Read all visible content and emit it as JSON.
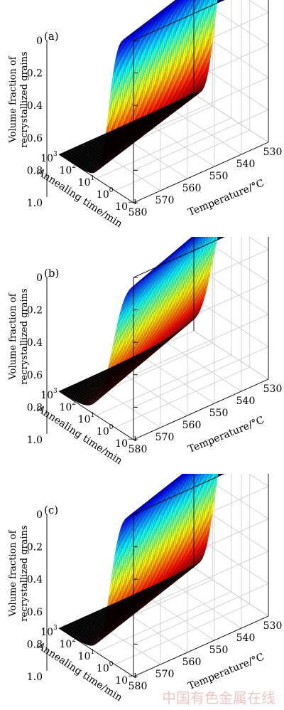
{
  "chart_data": [
    {
      "type": "surface",
      "panel_label": "(a)",
      "zlabel": [
        "Volume fraction of",
        "recrystallized grains"
      ],
      "xlabel": "Annealing time/min",
      "ylabel": "Temperature/°C",
      "x_ticks": [
        "10",
        "10",
        "10",
        "10",
        "10"
      ],
      "x_exponents": [
        "−1",
        "0",
        "1",
        "2",
        "3"
      ],
      "x_tick_values": [
        -1,
        0,
        1,
        2,
        3
      ],
      "x_scale": "log",
      "xlim": [
        0.1,
        1000
      ],
      "y_ticks": [
        "530",
        "540",
        "550",
        "560",
        "570",
        "580"
      ],
      "y_tick_values": [
        530,
        540,
        550,
        560,
        570,
        580
      ],
      "ylim": [
        530,
        580
      ],
      "z_ticks": [
        "0",
        "0.2",
        "0.4",
        "0.6",
        "0.8",
        "1.0"
      ],
      "z_tick_values": [
        0,
        0.2,
        0.4,
        0.6,
        0.8,
        1.0
      ],
      "zlim": [
        0,
        1
      ],
      "z_axis": "reversed",
      "grid": true,
      "colormap": [
        "#00007f",
        "#0000ff",
        "#0080ff",
        "#00ffff",
        "#80ff80",
        "#ffff00",
        "#ff8000",
        "#ff0000",
        "#7f0000",
        "#000000"
      ],
      "surface_params": {
        "log_t50_at_530": 1.9,
        "log_t50_at_580": 0.3,
        "sharpness": 2.2
      }
    },
    {
      "type": "surface",
      "panel_label": "(b)",
      "zlabel": [
        "Volume fraction of",
        "recrystallized grains"
      ],
      "xlabel": "Annealing time/min",
      "ylabel": "Temperature/°C",
      "x_ticks": [
        "10",
        "10",
        "10",
        "10",
        "10"
      ],
      "x_exponents": [
        "−1",
        "0",
        "1",
        "2",
        "3"
      ],
      "x_tick_values": [
        -1,
        0,
        1,
        2,
        3
      ],
      "x_scale": "log",
      "xlim": [
        0.1,
        1000
      ],
      "y_ticks": [
        "530",
        "540",
        "550",
        "560",
        "570",
        "580"
      ],
      "y_tick_values": [
        530,
        540,
        550,
        560,
        570,
        580
      ],
      "ylim": [
        530,
        580
      ],
      "z_ticks": [
        "0",
        "0.2",
        "0.4",
        "0.6",
        "0.8",
        "1.0"
      ],
      "z_tick_values": [
        0,
        0.2,
        0.4,
        0.6,
        0.8,
        1.0
      ],
      "zlim": [
        0,
        1
      ],
      "z_axis": "reversed",
      "grid": true,
      "colormap": [
        "#00007f",
        "#0000ff",
        "#0080ff",
        "#00ffff",
        "#80ff80",
        "#ffff00",
        "#ff8000",
        "#ff0000",
        "#7f0000",
        "#000000"
      ],
      "surface_params": {
        "log_t50_at_530": 2.0,
        "log_t50_at_580": 0.1,
        "sharpness": 1.3
      }
    },
    {
      "type": "surface",
      "panel_label": "(c)",
      "zlabel": [
        "Volume fraction of",
        "recrystallized grains"
      ],
      "xlabel": "Annealing time/min",
      "ylabel": "Temperature/°C",
      "x_ticks": [
        "10",
        "10",
        "10",
        "10",
        "10"
      ],
      "x_exponents": [
        "−1",
        "0",
        "1",
        "2",
        "3"
      ],
      "x_tick_values": [
        -1,
        0,
        1,
        2,
        3
      ],
      "x_scale": "log",
      "xlim": [
        0.1,
        1000
      ],
      "y_ticks": [
        "530",
        "540",
        "550",
        "560",
        "570",
        "580"
      ],
      "y_tick_values": [
        530,
        540,
        550,
        560,
        570,
        580
      ],
      "ylim": [
        530,
        580
      ],
      "z_ticks": [
        "0",
        "0.2",
        "0.4",
        "0.6",
        "0.8",
        "1.0"
      ],
      "z_tick_values": [
        0,
        0.2,
        0.4,
        0.6,
        0.8,
        1.0
      ],
      "zlim": [
        0,
        1
      ],
      "z_axis": "reversed",
      "grid": true,
      "colormap": [
        "#00007f",
        "#0000ff",
        "#0080ff",
        "#00ffff",
        "#80ff80",
        "#ffff00",
        "#ff8000",
        "#ff0000",
        "#7f0000",
        "#000000"
      ],
      "surface_params": {
        "log_t50_at_530": 1.9,
        "log_t50_at_580": 0.2,
        "sharpness": 1.8
      }
    }
  ],
  "watermark": "中国有色金属在线 www.cnmol.com"
}
